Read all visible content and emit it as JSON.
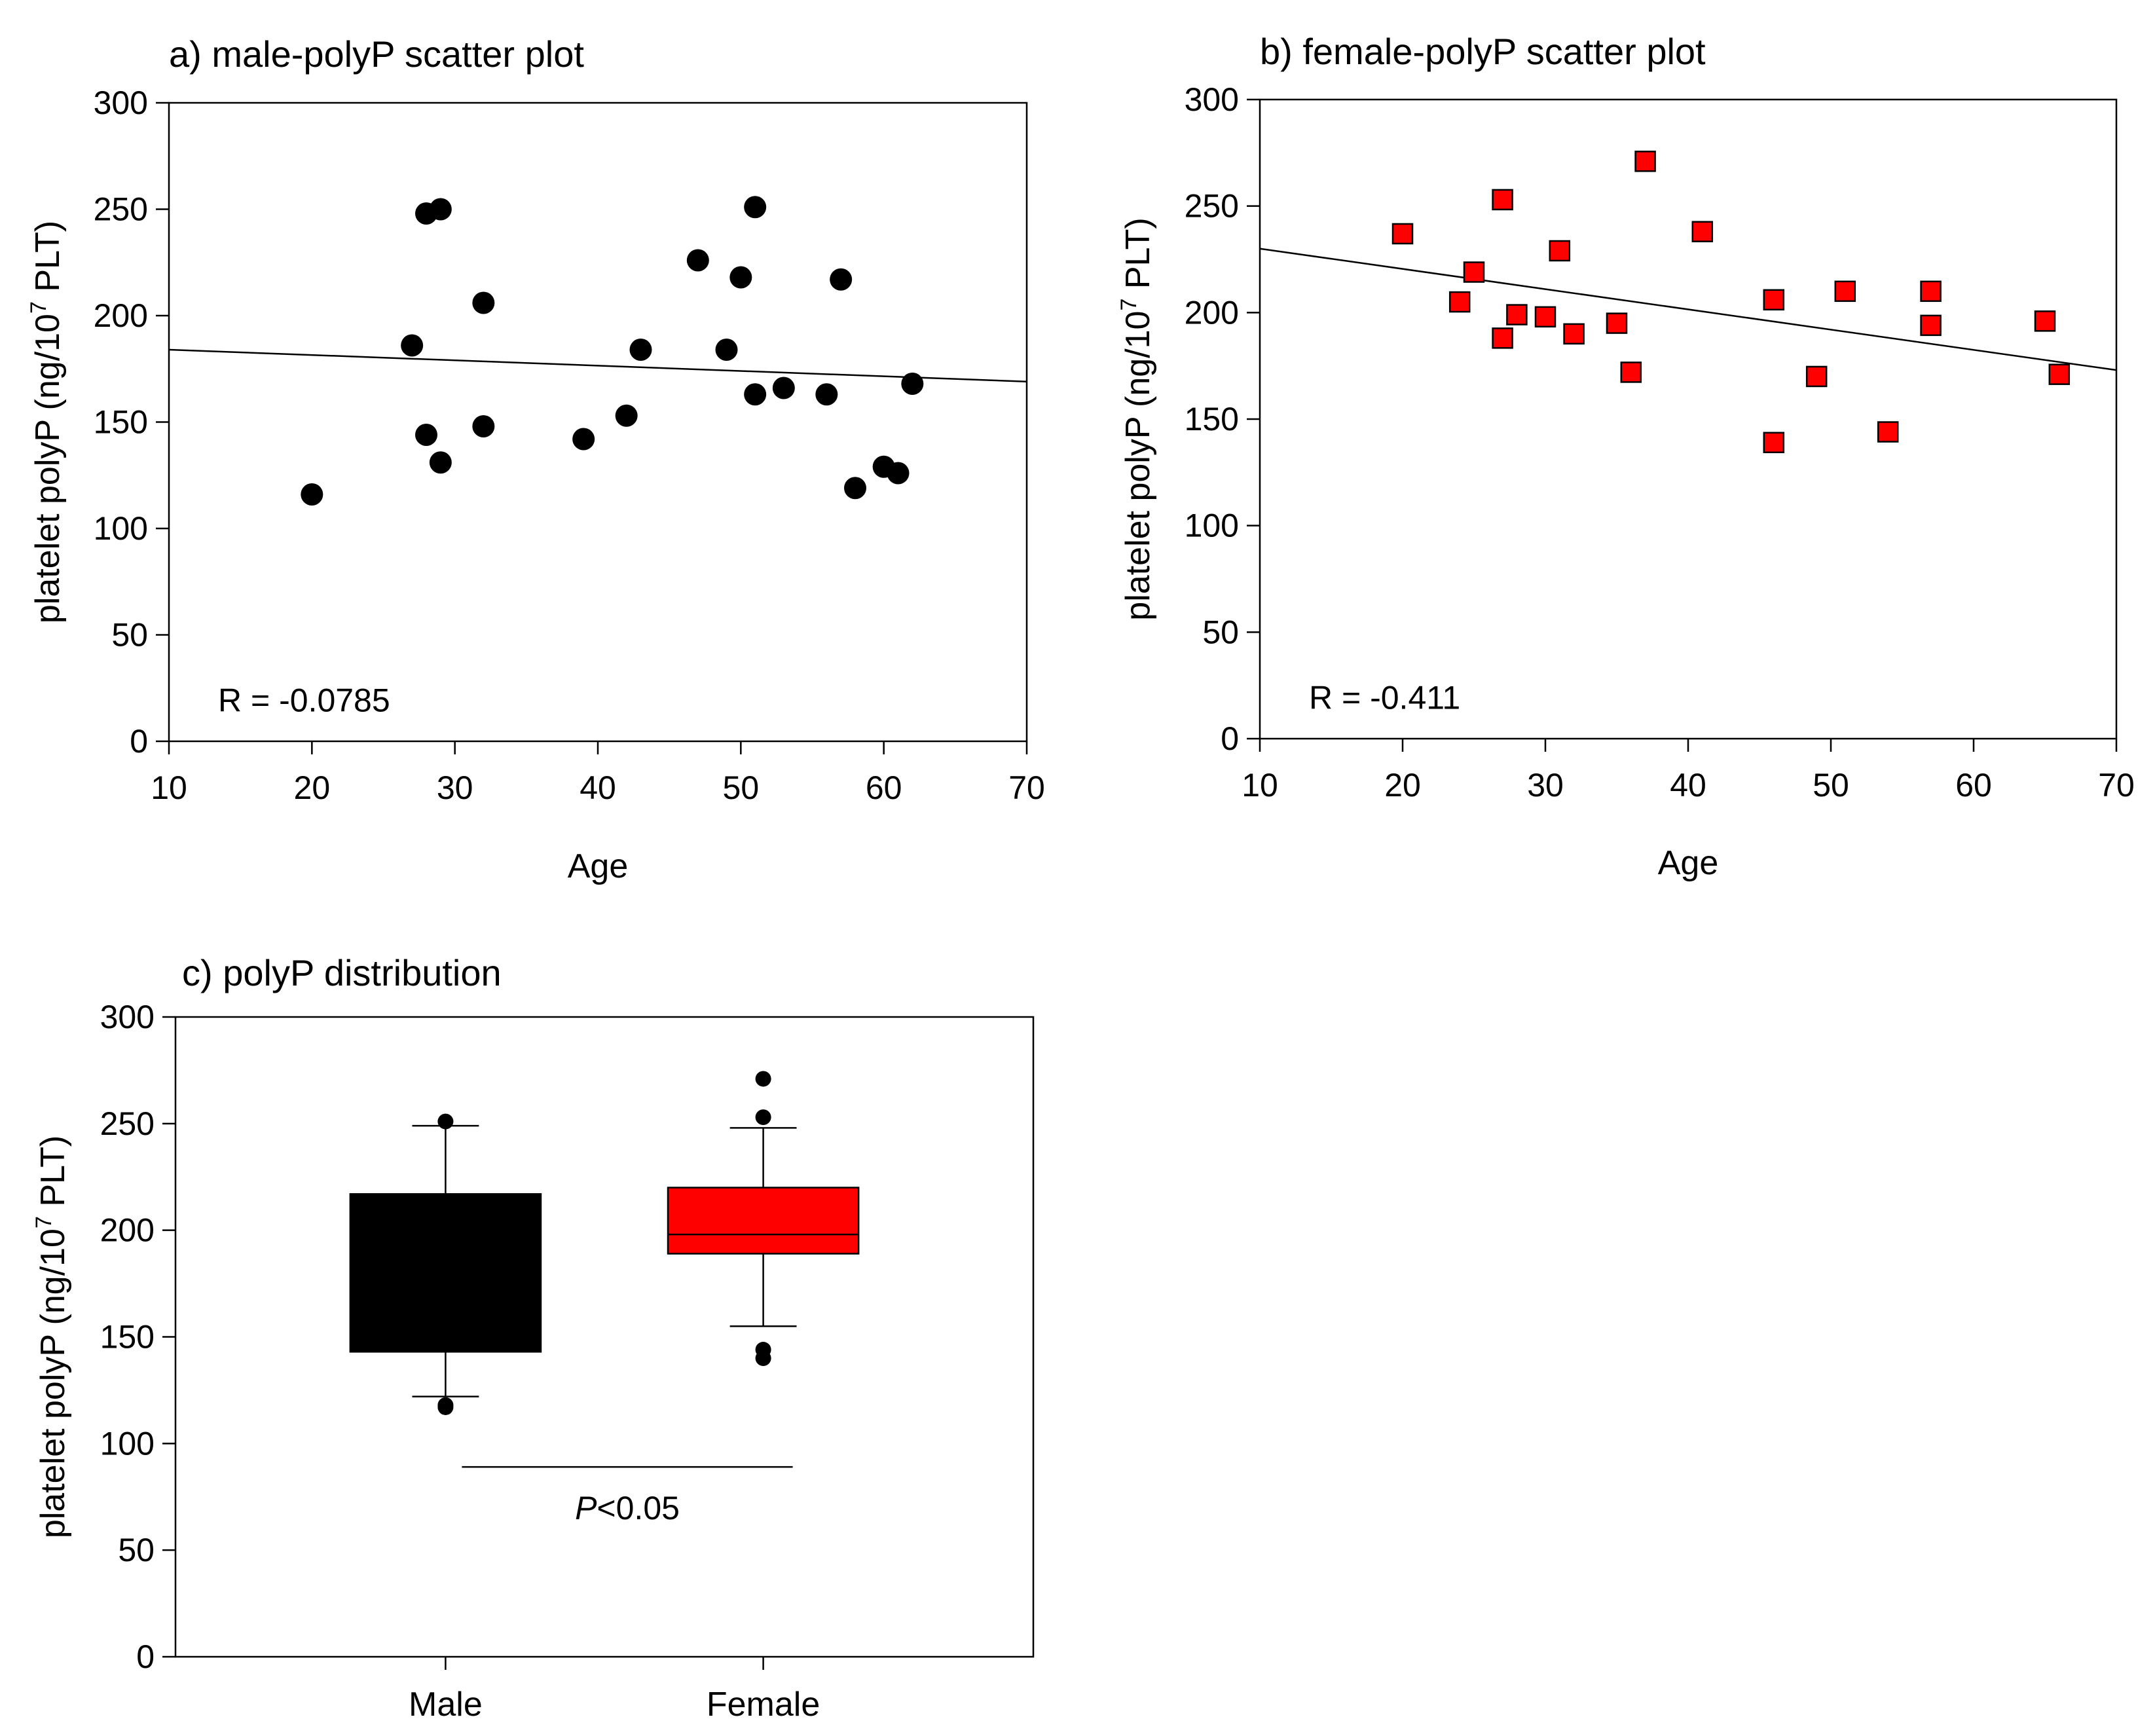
{
  "chart_data": [
    {
      "type": "scatter",
      "title": "a) male-polyP scatter plot",
      "xlabel": "Age",
      "ylabel": {
        "prefix": "platelet polyP (ng/10",
        "sup": "7",
        "suffix": " PLT)"
      },
      "xlim": [
        10,
        70
      ],
      "ylim": [
        0,
        300
      ],
      "xticks": [
        10,
        20,
        30,
        40,
        50,
        60,
        70
      ],
      "yticks": [
        0,
        50,
        100,
        150,
        200,
        250,
        300
      ],
      "grid": false,
      "marker": "circle",
      "marker_color": "#000000",
      "points": [
        [
          20,
          116
        ],
        [
          27,
          186
        ],
        [
          28,
          248
        ],
        [
          28,
          144
        ],
        [
          29,
          250
        ],
        [
          29,
          131
        ],
        [
          32,
          206
        ],
        [
          32,
          148
        ],
        [
          39,
          142
        ],
        [
          42,
          153
        ],
        [
          43,
          184
        ],
        [
          47,
          226
        ],
        [
          49,
          184
        ],
        [
          50,
          218
        ],
        [
          51,
          251
        ],
        [
          51,
          163
        ],
        [
          53,
          166
        ],
        [
          56,
          163
        ],
        [
          57,
          217
        ],
        [
          58,
          119
        ],
        [
          60,
          129
        ],
        [
          61,
          126
        ],
        [
          62,
          168
        ]
      ],
      "fit_line": [
        [
          10,
          184
        ],
        [
          70,
          169
        ]
      ],
      "annotation": "R = -0.0785"
    },
    {
      "type": "scatter",
      "title": "b) female-polyP scatter plot",
      "xlabel": "Age",
      "ylabel": {
        "prefix": "platelet polyP (ng/10",
        "sup": "7",
        "suffix": " PLT)"
      },
      "xlim": [
        10,
        70
      ],
      "ylim": [
        0,
        300
      ],
      "xticks": [
        10,
        20,
        30,
        40,
        50,
        60,
        70
      ],
      "yticks": [
        0,
        50,
        100,
        150,
        200,
        250,
        300
      ],
      "grid": false,
      "marker": "square",
      "marker_color": "#ff0000",
      "points": [
        [
          20,
          237
        ],
        [
          24,
          205
        ],
        [
          25,
          219
        ],
        [
          27,
          253
        ],
        [
          27,
          188
        ],
        [
          28,
          199
        ],
        [
          30,
          198
        ],
        [
          31,
          229
        ],
        [
          32,
          190
        ],
        [
          35,
          195
        ],
        [
          36,
          172
        ],
        [
          37,
          271
        ],
        [
          41,
          238
        ],
        [
          46,
          206
        ],
        [
          46,
          139
        ],
        [
          49,
          170
        ],
        [
          51,
          210
        ],
        [
          54,
          144
        ],
        [
          57,
          210
        ],
        [
          57,
          194
        ],
        [
          65,
          196
        ],
        [
          66,
          171
        ]
      ],
      "fit_line": [
        [
          10,
          230
        ],
        [
          70,
          173
        ]
      ],
      "annotation": "R = -0.411"
    },
    {
      "type": "box",
      "title": "c) polyP distribution",
      "ylabel": {
        "prefix": "platelet polyP (ng/10",
        "sup": "7",
        "suffix": " PLT)"
      },
      "ylim": [
        0,
        300
      ],
      "yticks": [
        0,
        50,
        100,
        150,
        200,
        250,
        300
      ],
      "grid": false,
      "categories": [
        "Male",
        "Female"
      ],
      "boxes": [
        {
          "name": "Male",
          "color": "#000000",
          "q1": 143,
          "median": 143,
          "q3": 217,
          "whisker_low": 122,
          "whisker_high": 249,
          "outliers": [
            251,
            118,
            117
          ]
        },
        {
          "name": "Female",
          "color": "#ff0000",
          "q1": 189,
          "median": 198,
          "q3": 220,
          "whisker_low": 155,
          "whisker_high": 248,
          "outliers": [
            271,
            253,
            144,
            140
          ]
        }
      ],
      "significance": {
        "from": "Male",
        "to": "Female",
        "y": 89,
        "italic": "P",
        "text": "<0.05"
      }
    }
  ]
}
